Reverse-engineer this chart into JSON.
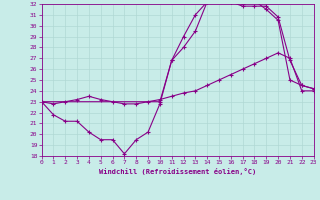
{
  "xlabel": "Windchill (Refroidissement éolien,°C)",
  "background_color": "#c8ece8",
  "grid_color": "#b0d8d4",
  "line_color": "#880088",
  "xlim": [
    0,
    23
  ],
  "ylim": [
    18,
    32
  ],
  "xticks": [
    0,
    1,
    2,
    3,
    4,
    5,
    6,
    7,
    8,
    9,
    10,
    11,
    12,
    13,
    14,
    15,
    16,
    17,
    18,
    19,
    20,
    21,
    22,
    23
  ],
  "yticks": [
    18,
    19,
    20,
    21,
    22,
    23,
    24,
    25,
    26,
    27,
    28,
    29,
    30,
    31,
    32
  ],
  "line1_x": [
    0,
    1,
    2,
    3,
    4,
    5,
    6,
    7,
    8,
    9,
    10,
    11,
    12,
    13,
    14,
    15,
    16,
    17,
    18,
    19,
    20,
    21,
    22,
    23
  ],
  "line1_y": [
    23.0,
    21.8,
    21.2,
    21.2,
    20.2,
    19.5,
    19.5,
    18.2,
    19.5,
    20.2,
    22.8,
    26.8,
    29.0,
    31.0,
    32.2,
    32.3,
    32.2,
    32.0,
    32.3,
    31.5,
    30.5,
    25.0,
    24.5,
    24.2
  ],
  "line2_x": [
    0,
    10,
    11,
    12,
    13,
    14,
    15,
    16,
    17,
    18,
    19,
    20,
    21,
    22,
    23
  ],
  "line2_y": [
    23.0,
    23.0,
    26.8,
    28.0,
    29.5,
    32.2,
    32.3,
    32.2,
    31.8,
    31.8,
    31.8,
    30.8,
    26.8,
    24.5,
    24.2
  ],
  "line3_x": [
    0,
    1,
    2,
    3,
    4,
    5,
    6,
    7,
    8,
    9,
    10,
    11,
    12,
    13,
    14,
    15,
    16,
    17,
    18,
    19,
    20,
    21,
    22,
    23
  ],
  "line3_y": [
    23.0,
    22.8,
    23.0,
    23.2,
    23.5,
    23.2,
    23.0,
    22.8,
    22.8,
    23.0,
    23.2,
    23.5,
    23.8,
    24.0,
    24.5,
    25.0,
    25.5,
    26.0,
    26.5,
    27.0,
    27.5,
    27.0,
    24.0,
    24.0
  ]
}
